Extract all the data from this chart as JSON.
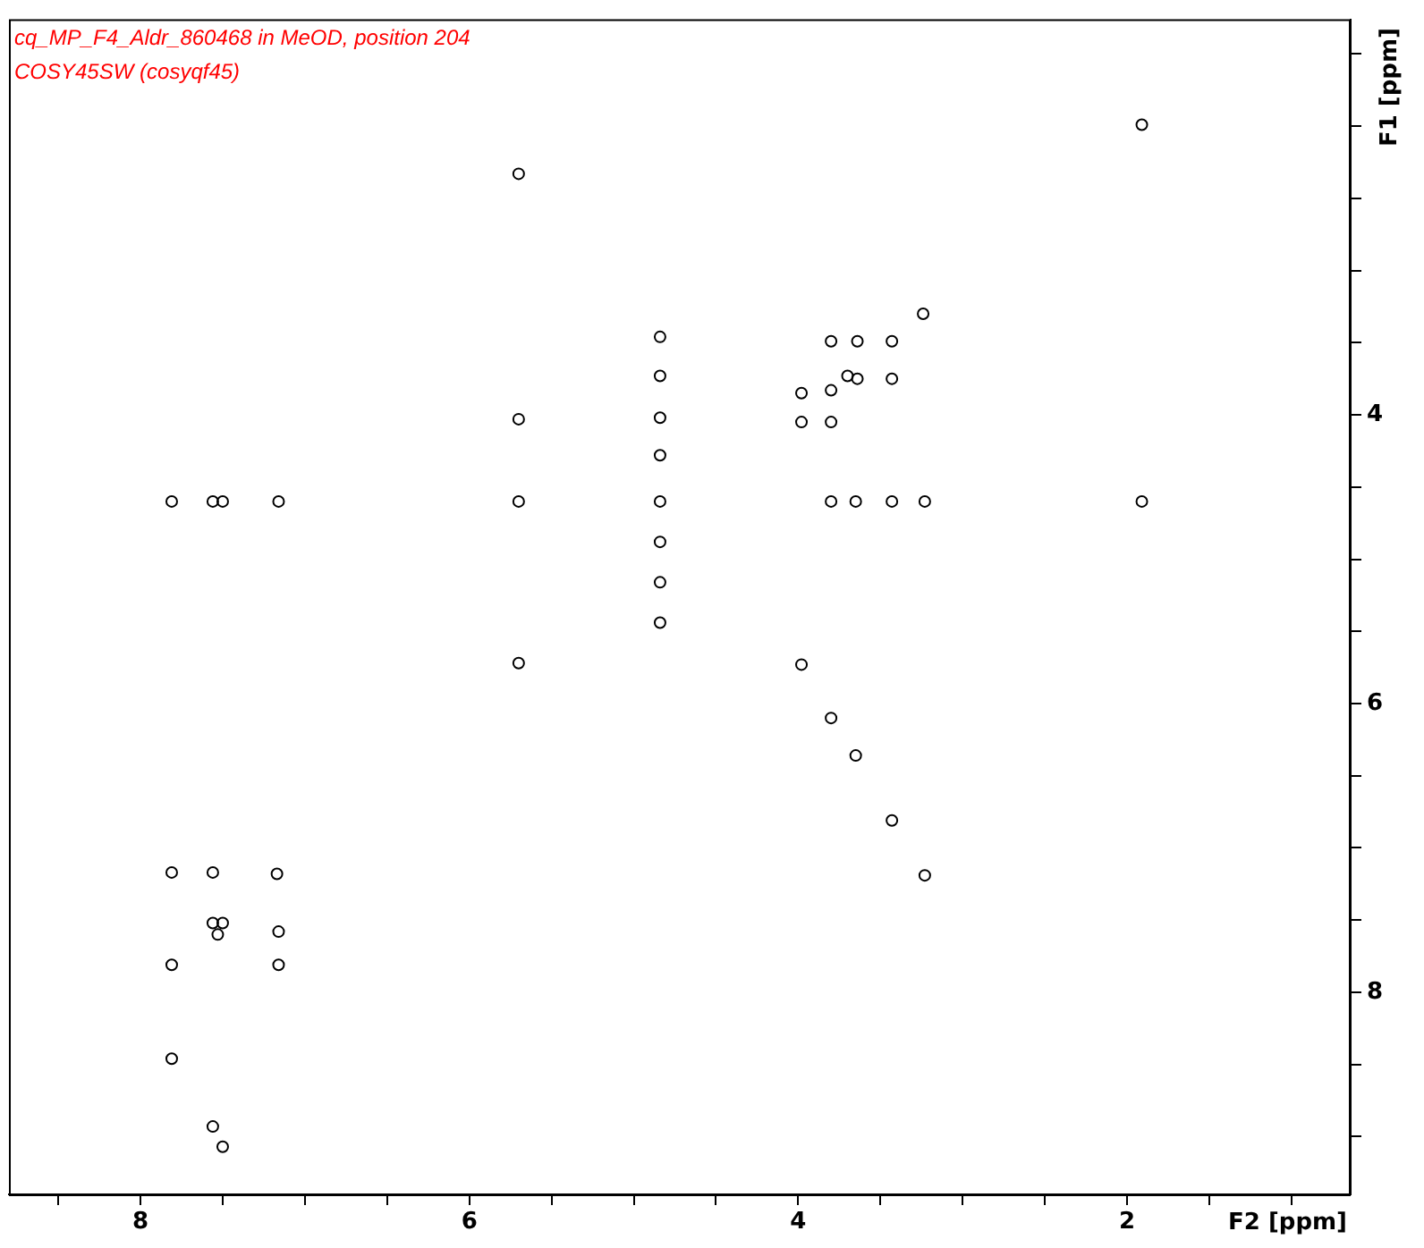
{
  "chart_data": {
    "type": "scatter",
    "title": "cq_MP_F4_Aldr_860468 in MeOD, position 204",
    "subtitle": "COSY45SW (cosyqf45)",
    "xlabel": "F2 [ppm]",
    "ylabel": "F1 [ppm]",
    "x": [
      1.91,
      5.7,
      5.7,
      5.7,
      5.7,
      4.84,
      4.84,
      4.84,
      4.84,
      4.84,
      4.84,
      4.84,
      4.84,
      3.24,
      3.8,
      3.64,
      3.43,
      3.7,
      3.64,
      3.43,
      3.8,
      3.98,
      3.98,
      3.8,
      3.8,
      3.65,
      3.43,
      3.23,
      1.91,
      7.81,
      7.56,
      7.5,
      7.16,
      3.98,
      3.8,
      3.65,
      3.43,
      3.23,
      7.81,
      7.56,
      7.17,
      7.56,
      7.5,
      7.53,
      7.16,
      7.16,
      7.81,
      7.81,
      7.56,
      7.5
    ],
    "values": [
      1.99,
      2.33,
      4.03,
      4.6,
      5.72,
      3.46,
      3.73,
      4.02,
      4.28,
      4.6,
      4.88,
      5.16,
      5.44,
      3.3,
      3.49,
      3.49,
      3.49,
      3.73,
      3.75,
      3.75,
      3.83,
      3.85,
      4.05,
      4.05,
      4.6,
      4.6,
      4.6,
      4.6,
      4.6,
      4.6,
      4.6,
      4.6,
      4.6,
      5.73,
      6.1,
      6.36,
      6.81,
      7.19,
      7.17,
      7.17,
      7.18,
      7.52,
      7.52,
      7.6,
      7.58,
      7.81,
      7.81,
      8.46,
      8.93,
      9.07
    ],
    "color": "#000000",
    "marker": "circle",
    "legend": false,
    "xlim": [
      8.8,
      0.64
    ],
    "xticks": [
      {
        "value": 8.5,
        "label": null
      },
      8,
      {
        "value": 7.5,
        "label": null
      },
      {
        "value": 7,
        "label": null
      },
      {
        "value": 6.5,
        "label": null
      },
      6,
      {
        "value": 5.5,
        "label": null
      },
      {
        "value": 5,
        "label": null
      },
      {
        "value": 4.5,
        "label": null
      },
      4,
      {
        "value": 3.5,
        "label": null
      },
      {
        "value": 3,
        "label": null
      },
      {
        "value": 2.5,
        "label": null
      },
      2,
      {
        "value": 1.5,
        "label": null
      },
      {
        "value": 1,
        "label": null
      }
    ],
    "ylim": [
      9.4,
      1.26
    ],
    "yticks": [
      {
        "value": 1.5,
        "label": null
      },
      {
        "value": 2,
        "label": null
      },
      {
        "value": 2.5,
        "label": null
      },
      {
        "value": 3,
        "label": null
      },
      {
        "value": 3.5,
        "label": null
      },
      4,
      {
        "value": 4.5,
        "label": null
      },
      {
        "value": 5,
        "label": null
      },
      {
        "value": 5.5,
        "label": null
      },
      6,
      {
        "value": 6.5,
        "label": null
      },
      {
        "value": 7,
        "label": null
      },
      {
        "value": 7.5,
        "label": null
      },
      8,
      {
        "value": 8.5,
        "label": null
      },
      {
        "value": 9,
        "label": null
      }
    ]
  }
}
